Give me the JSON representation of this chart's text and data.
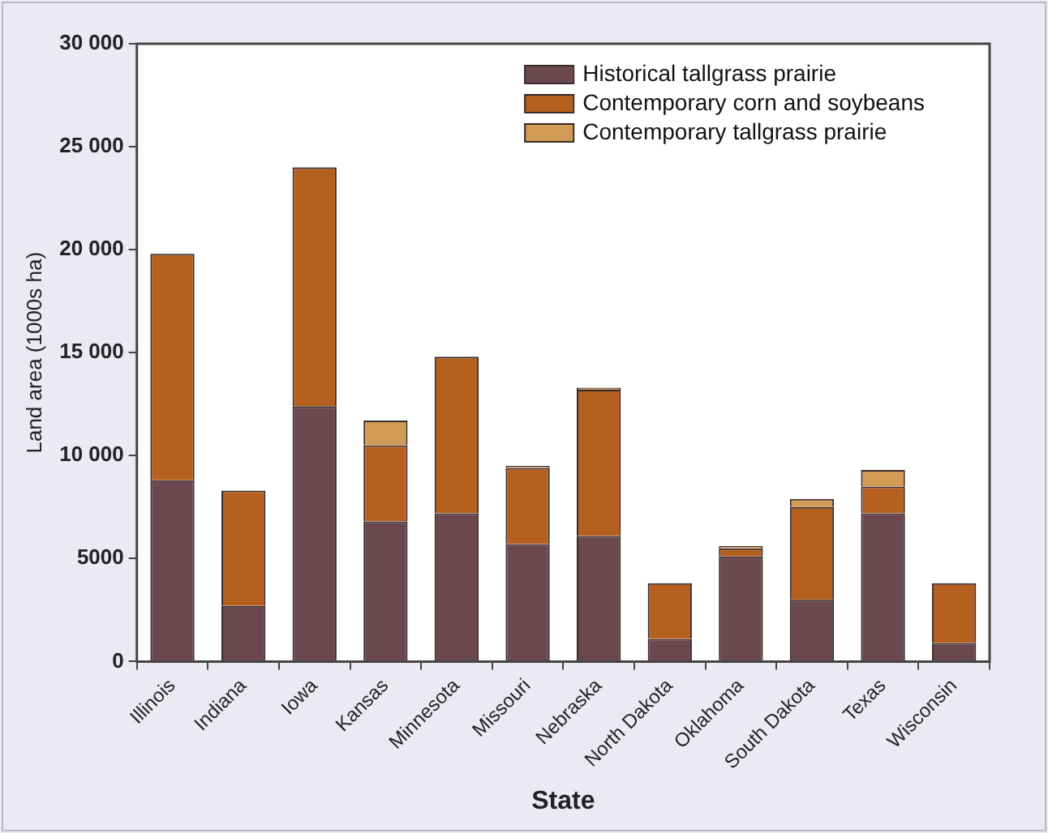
{
  "chart_data": {
    "type": "bar",
    "stacked": true,
    "xlabel": "State",
    "ylabel": "Land area (1000s ha)",
    "categories": [
      "Illinois",
      "Indiana",
      "Iowa",
      "Kansas",
      "Minnesota",
      "Missouri",
      "Nebraska",
      "North Dakota",
      "Oklahoma",
      "South Dakota",
      "Texas",
      "Wisconsin"
    ],
    "series": [
      {
        "name": "Historical tallgrass prairie",
        "color": "#6b4850",
        "values": [
          8800,
          2700,
          12400,
          6800,
          7200,
          5700,
          6100,
          1100,
          5100,
          3000,
          7200,
          900
        ]
      },
      {
        "name": "Contemporary corn and soybeans",
        "color": "#b5601f",
        "values": [
          11000,
          5600,
          11600,
          3700,
          7600,
          3700,
          7100,
          2700,
          400,
          4500,
          1300,
          2900
        ]
      },
      {
        "name": "Contemporary tallgrass prairie",
        "color": "#d19a55",
        "values": [
          0,
          0,
          0,
          1200,
          0,
          100,
          100,
          0,
          100,
          400,
          800,
          0
        ]
      }
    ],
    "ylim": [
      0,
      30000
    ],
    "yticks": [
      0,
      5000,
      {
        "value": 10000,
        "label": "10 000"
      },
      {
        "value": 15000,
        "label": "15 000"
      },
      {
        "value": 20000,
        "label": "20 000"
      },
      {
        "value": 25000,
        "label": "25 000"
      },
      {
        "value": 30000,
        "label": "30 000"
      }
    ],
    "grid": false,
    "legend": "top right"
  }
}
